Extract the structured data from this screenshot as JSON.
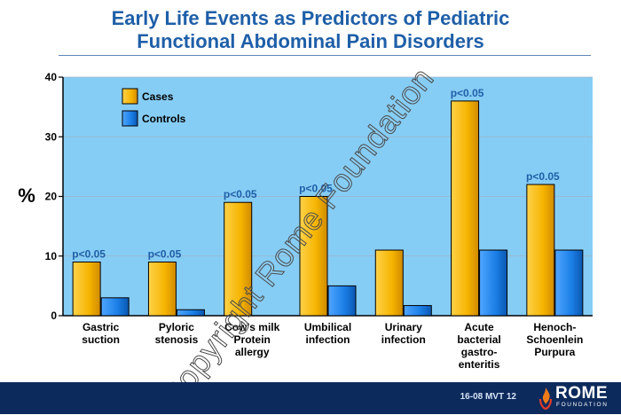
{
  "slide": {
    "title_line1": "Early Life Events as Predictors of Pediatric",
    "title_line2": "Functional Abdominal Pain Disorders",
    "slide_id": "16-08  MVT 12",
    "logo_text": "ROME",
    "logo_subtext": "FOUNDATION",
    "watermark": "Copyright Rome Foundation"
  },
  "colors": {
    "cases": "#f5b400",
    "controls": "#1a7ee6",
    "plot_background": "#86cdf5",
    "significance_label": "#1f5fa8",
    "footer": "#0d2a5c"
  },
  "chart_data": {
    "type": "bar",
    "title": "Early Life Events as Predictors of Pediatric Functional Abdominal Pain Disorders",
    "ylabel": "%",
    "xlabel": "",
    "ylim": [
      0,
      40
    ],
    "yticks": [
      0,
      10,
      20,
      30,
      40
    ],
    "categories": [
      [
        "Gastric",
        "suction"
      ],
      [
        "Pyloric",
        "stenosis"
      ],
      [
        "Cow's milk",
        "Protein",
        "allergy"
      ],
      [
        "Umbilical",
        "infection"
      ],
      [
        "Urinary",
        "infection"
      ],
      [
        "Acute",
        "bacterial",
        "gastro-",
        "enteritis"
      ],
      [
        "Henoch-",
        "Schoenlein",
        "Purpura"
      ]
    ],
    "series": [
      {
        "name": "Cases",
        "values": [
          9,
          9,
          19,
          20,
          11,
          36,
          22
        ]
      },
      {
        "name": "Controls",
        "values": [
          3,
          1,
          0,
          5,
          1.7,
          11,
          11
        ]
      }
    ],
    "annotations": [
      "p<0.05",
      "p<0.05",
      "p<0.05",
      "p<0.05",
      "",
      "p<0.05",
      "p<0.05"
    ],
    "legend_position": "top-left",
    "grid": true
  }
}
